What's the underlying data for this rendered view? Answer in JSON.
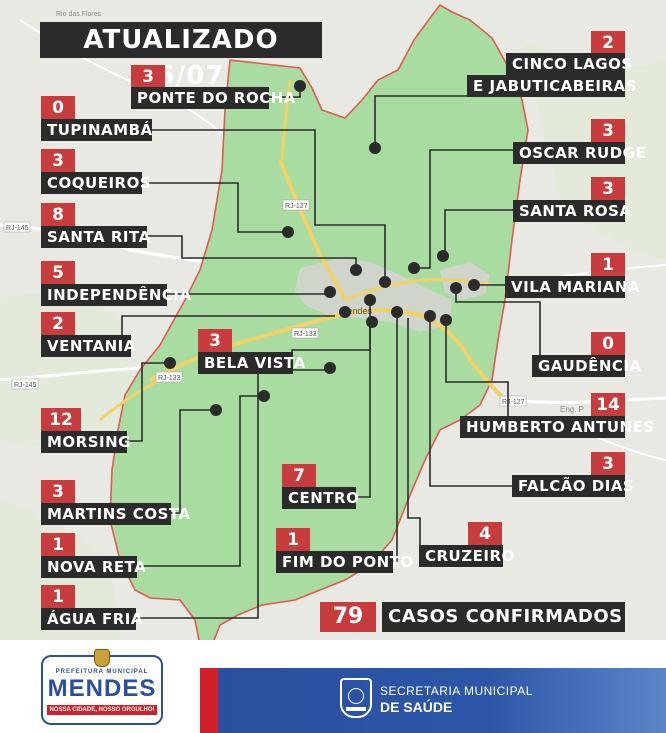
{
  "title": "ATUALIZADO 16/07",
  "total": {
    "value": "79",
    "label": "CASOS CONFIRMADOS"
  },
  "map_labels": {
    "city": "Mendes",
    "roads": [
      "RJ-127",
      "RJ-145",
      "RJ-133",
      "RJ-133",
      "RJ-145",
      "RJ-127"
    ],
    "place_faint": "Eng. P",
    "place_top": "Rio das Flores"
  },
  "neighborhoods": [
    {
      "name": "PONTE DO ROCHA",
      "count": "3"
    },
    {
      "name": "TUPINAMBÁ",
      "count": "0"
    },
    {
      "name": "COQUEIROS",
      "count": "3"
    },
    {
      "name": "SANTA RITA",
      "count": "8"
    },
    {
      "name": "INDEPENDÊNCIA",
      "count": "5"
    },
    {
      "name": "VENTANIA",
      "count": "2"
    },
    {
      "name": "BELA VISTA",
      "count": "3"
    },
    {
      "name": "MORSING",
      "count": "12"
    },
    {
      "name": "MARTINS COSTA",
      "count": "3"
    },
    {
      "name": "NOVA RETA",
      "count": "1"
    },
    {
      "name": "ÁGUA FRIA",
      "count": "1"
    },
    {
      "name": "CENTRO",
      "count": "7"
    },
    {
      "name": "FIM DO PONTO",
      "count": "1"
    },
    {
      "name": "CRUZEIRO",
      "count": "4"
    },
    {
      "name": "CINCO LAGOS",
      "name2": "E JABUTICABEIRAS",
      "count": "2"
    },
    {
      "name": "OSCAR RUDGE",
      "count": "3"
    },
    {
      "name": "SANTA ROSA",
      "count": "3"
    },
    {
      "name": "VILA MARIANA",
      "count": "1"
    },
    {
      "name": "GAUDÊNCIA",
      "count": "0"
    },
    {
      "name": "HUMBERTO ANTUNES",
      "count": "14"
    },
    {
      "name": "FALCÃO DIAS",
      "count": "3"
    }
  ],
  "footer": {
    "prefeitura_top": "PREFEITURA MUNICIPAL",
    "prefeitura_name": "MENDES",
    "prefeitura_slogan": "NOSSA CIDADE, NOSSO ORGULHO!",
    "secretaria_line1": "SECRETARIA MUNICIPAL",
    "secretaria_line2": "DE SAÚDE"
  },
  "colors": {
    "region_fill": "#a9dca0",
    "border": "#e05a4f",
    "label_bg": "#2b2b2b",
    "count_bg": "#c83c3e",
    "footer_blue": "#2d56a8",
    "footer_red": "#d0202a"
  }
}
